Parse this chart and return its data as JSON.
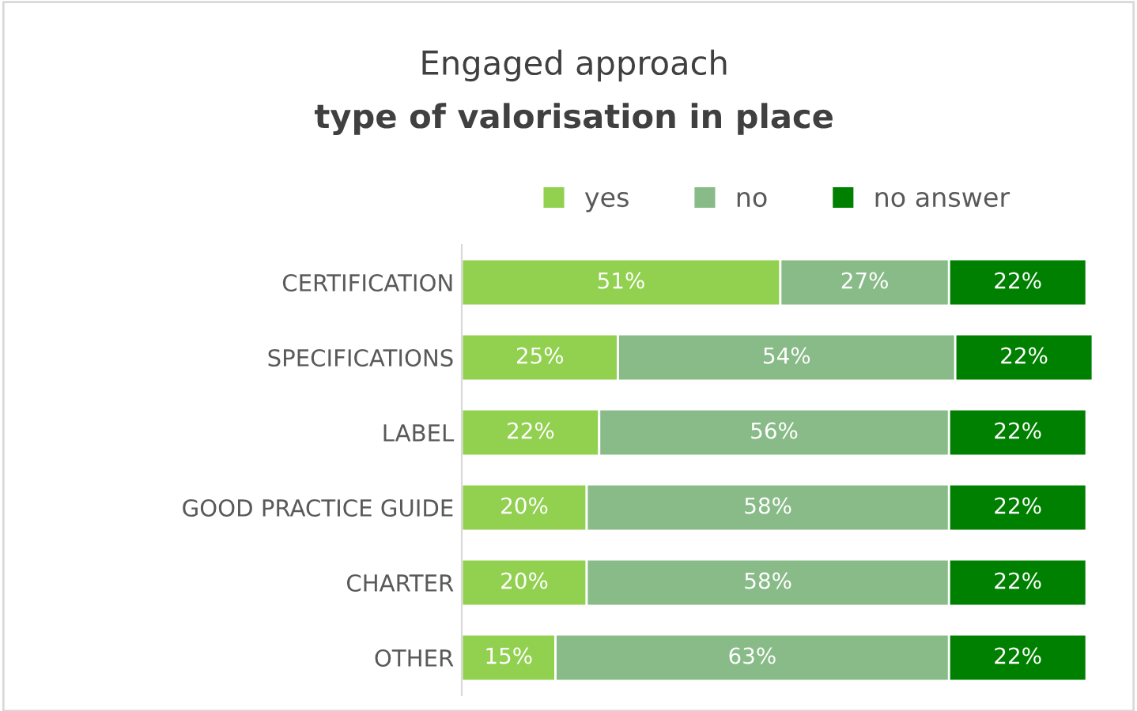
{
  "chart_data": {
    "type": "bar",
    "orientation": "horizontal",
    "stacked": true,
    "title": "Engaged approach",
    "subtitle": "type of valorisation in place",
    "categories": [
      "CERTIFICATION",
      "SPECIFICATIONS",
      "LABEL",
      "GOOD PRACTICE GUIDE",
      "CHARTER",
      "OTHER"
    ],
    "series": [
      {
        "name": "yes",
        "color": "#92d050",
        "values": [
          51,
          25,
          22,
          20,
          20,
          15
        ],
        "value_labels": [
          "51%",
          "25%",
          "22%",
          "20%",
          "20%",
          "15%"
        ]
      },
      {
        "name": "no",
        "color": "#88bb88",
        "values": [
          27,
          54,
          56,
          58,
          58,
          63
        ],
        "value_labels": [
          "27%",
          "54%",
          "56%",
          "58%",
          "58%",
          "63%"
        ]
      },
      {
        "name": "no answer",
        "color": "#008000",
        "values": [
          22,
          22,
          22,
          22,
          22,
          22
        ],
        "value_labels": [
          "22%",
          "22%",
          "22%",
          "22%",
          "22%",
          "22%"
        ]
      }
    ],
    "xlim": [
      0,
      101
    ],
    "tick_labels": "y",
    "legend": "top"
  }
}
